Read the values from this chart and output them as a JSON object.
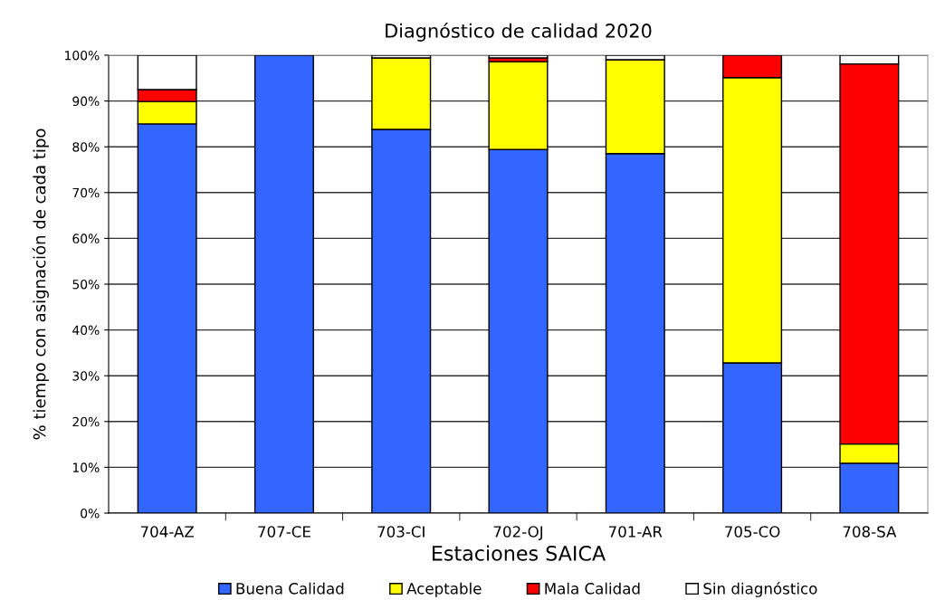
{
  "chart_data": {
    "type": "bar",
    "title": "Diagnóstico de calidad 2020",
    "xlabel": "Estaciones SAICA",
    "ylabel": "% tiempo con asignación de cada tipo",
    "categories": [
      "704-AZ",
      "707-CE",
      "703-CI",
      "702-OJ",
      "701-AR",
      "705-CO",
      "708-SA"
    ],
    "stacked": true,
    "series": [
      {
        "name": "Buena Calidad",
        "color": "#3366ff",
        "values": [
          85.0,
          100,
          83.8,
          79.4,
          78.5,
          32.8,
          10.9
        ]
      },
      {
        "name": "Aceptable",
        "color": "#ffff00",
        "values": [
          4.9,
          null,
          15.6,
          19.2,
          20.5,
          62.3,
          4.2
        ]
      },
      {
        "name": "Mala Calidad",
        "color": "#ff0000",
        "values": [
          2.6,
          null,
          null,
          0.8,
          null,
          4.9,
          83.0
        ]
      },
      {
        "name": "Sin diagnóstico",
        "color": "#ffffff",
        "values": [
          7.5,
          null,
          0.6,
          0.6,
          1.0,
          null,
          1.9
        ]
      }
    ],
    "ylim": [
      0,
      100
    ],
    "yticks": [
      {
        "value": 0,
        "label": "0%"
      },
      {
        "value": 10,
        "label": "10%"
      },
      {
        "value": 20,
        "label": "20%"
      },
      {
        "value": 30,
        "label": "30%"
      },
      {
        "value": 40,
        "label": "40%"
      },
      {
        "value": 50,
        "label": "50%"
      },
      {
        "value": 60,
        "label": "60%"
      },
      {
        "value": 70,
        "label": "70%"
      },
      {
        "value": 80,
        "label": "80%"
      },
      {
        "value": 90,
        "label": "90%"
      },
      {
        "value": 100,
        "label": "100%"
      }
    ],
    "grid": "y",
    "legend": "bottom"
  }
}
